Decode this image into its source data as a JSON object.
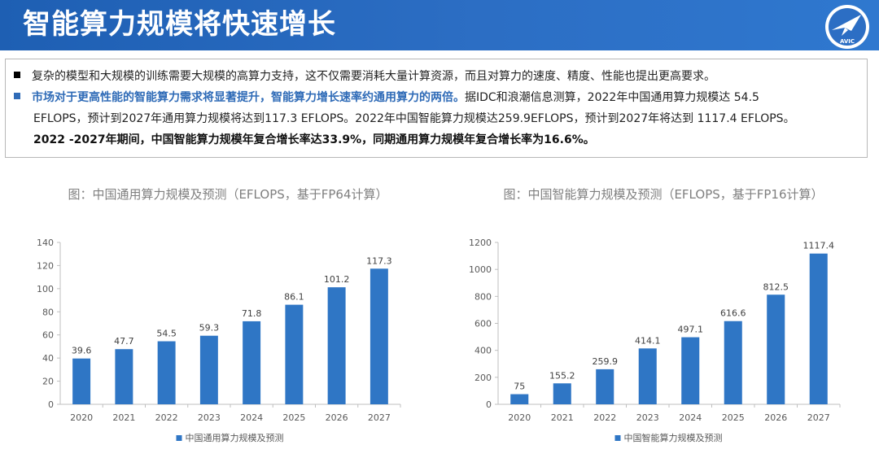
{
  "header": {
    "title": "智能算力规模将快速增长",
    "logo_text": "AVIC"
  },
  "colors": {
    "header_blue": "#2c6ec4",
    "bar_blue": "#2f76c5",
    "highlight": "#2f6bb7"
  },
  "summary": {
    "line1": "复杂的模型和大规模的训练需要大规模的高算力支持，这不仅需要消耗大量计算资源，而且对算力的速度、精度、性能也提出更高要求。",
    "line2_highlight": "市场对于更高性能的智能算力需求将显著提升，智能算力增长速率约通用算力的两倍。",
    "line2_rest": "据IDC和浪潮信息测算，2022年中国通用算力规模达 54.5",
    "line3": "EFLOPS，预计到2027年通用算力规模将达到117.3 EFLOPS。2022年中国智能算力规模达259.9EFLOPS，预计到2027年将达到 1117.4 EFLOPS。",
    "line4": "2022 -2027年期间，中国智能算力规模年复合增长率达33.9%，同期通用算力规模年复合增长率为16.6%。"
  },
  "chart_data": [
    {
      "type": "bar",
      "title": "图：中国通用算力规模及预测（EFLOPS，基于FP64计算）",
      "categories": [
        "2020",
        "2021",
        "2022",
        "2023",
        "2024",
        "2025",
        "2026",
        "2027"
      ],
      "series": [
        {
          "name": "中国通用算力规模及预测",
          "values": [
            39.6,
            47.7,
            54.5,
            59.3,
            71.8,
            86.1,
            101.2,
            117.3
          ]
        }
      ],
      "value_labels": [
        "39.6",
        "47.7",
        "54.5",
        "59.3",
        "71.8",
        "86.1",
        "101.2",
        "117.3"
      ],
      "ylim": [
        0,
        140
      ],
      "yticks": [
        "0",
        "20",
        "40",
        "60",
        "80",
        "100",
        "120",
        "140"
      ],
      "legend_position": "bottom",
      "grid": false
    },
    {
      "type": "bar",
      "title": "图：中国智能算力规模及预测（EFLOPS，基于FP16计算）",
      "categories": [
        "2020",
        "2021",
        "2022",
        "2023",
        "2024",
        "2025",
        "2026",
        "2027"
      ],
      "series": [
        {
          "name": "中国智能算力规模及预测",
          "values": [
            75,
            155.2,
            259.9,
            414.1,
            497.1,
            616.6,
            812.5,
            1117.4
          ]
        }
      ],
      "value_labels": [
        "75",
        "155.2",
        "259.9",
        "414.1",
        "497.1",
        "616.6",
        "812.5",
        "1117.4"
      ],
      "ylim": [
        0,
        1200
      ],
      "yticks": [
        "0",
        "200",
        "400",
        "600",
        "800",
        "1000",
        "1200"
      ],
      "legend_position": "bottom",
      "grid": false
    }
  ]
}
